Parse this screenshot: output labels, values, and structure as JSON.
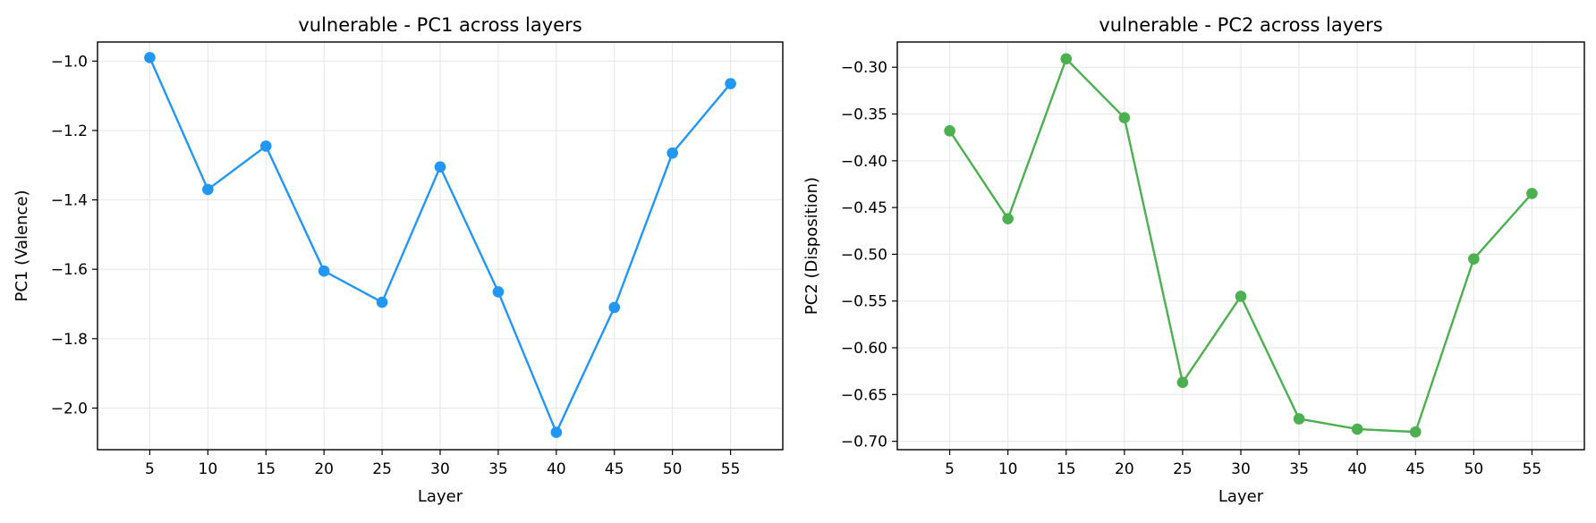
{
  "chart_data": [
    {
      "type": "line",
      "title": "vulnerable - PC1 across layers",
      "xlabel": "Layer",
      "ylabel": "PC1 (Valence)",
      "x": [
        5,
        10,
        15,
        20,
        25,
        30,
        35,
        40,
        45,
        50,
        55
      ],
      "series": [
        {
          "values": [
            -0.99,
            -1.37,
            -1.245,
            -1.605,
            -1.695,
            -1.305,
            -1.665,
            -2.07,
            -1.71,
            -1.265,
            -1.065
          ],
          "color": "#2196F3"
        }
      ],
      "xlim": [
        0.5,
        59.5
      ],
      "ylim": [
        -2.12,
        -0.945
      ],
      "xticks": [
        5,
        10,
        15,
        20,
        25,
        30,
        35,
        40,
        45,
        50,
        55
      ],
      "xtick_labels": [
        "5",
        "10",
        "15",
        "20",
        "25",
        "30",
        "35",
        "40",
        "45",
        "50",
        "55"
      ],
      "yticks": [
        -1.0,
        -1.2,
        -1.4,
        -1.6,
        -1.8,
        -2.0
      ],
      "ytick_labels": [
        "−1.0",
        "−1.2",
        "−1.4",
        "−1.6",
        "−1.8",
        "−2.0"
      ],
      "grid": true,
      "marker": "circle"
    },
    {
      "type": "line",
      "title": "vulnerable - PC2 across layers",
      "xlabel": "Layer",
      "ylabel": "PC2 (Disposition)",
      "x": [
        5,
        10,
        15,
        20,
        25,
        30,
        35,
        40,
        45,
        50,
        55
      ],
      "series": [
        {
          "values": [
            -0.368,
            -0.462,
            -0.291,
            -0.354,
            -0.637,
            -0.545,
            -0.676,
            -0.687,
            -0.69,
            -0.505,
            -0.435
          ],
          "color": "#4CAF50"
        }
      ],
      "xlim": [
        0.5,
        59.5
      ],
      "ylim": [
        -0.709,
        -0.273
      ],
      "xticks": [
        5,
        10,
        15,
        20,
        25,
        30,
        35,
        40,
        45,
        50,
        55
      ],
      "xtick_labels": [
        "5",
        "10",
        "15",
        "20",
        "25",
        "30",
        "35",
        "40",
        "45",
        "50",
        "55"
      ],
      "yticks": [
        -0.3,
        -0.35,
        -0.4,
        -0.45,
        -0.5,
        -0.55,
        -0.6,
        -0.65,
        -0.7
      ],
      "ytick_labels": [
        "−0.30",
        "−0.35",
        "−0.40",
        "−0.45",
        "−0.50",
        "−0.55",
        "−0.60",
        "−0.65",
        "−0.70"
      ],
      "grid": true,
      "marker": "circle"
    }
  ]
}
